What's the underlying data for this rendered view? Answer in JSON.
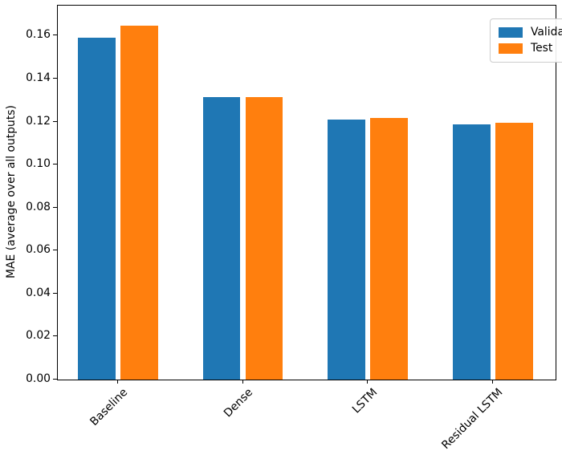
{
  "chart_data": {
    "type": "bar",
    "title": "",
    "categories": [
      "Baseline",
      "Dense",
      "LSTM",
      "Residual LSTM"
    ],
    "series": [
      {
        "name": "Validation",
        "color": "#1f77b4",
        "values": [
          0.1592,
          0.1315,
          0.1208,
          0.1188
        ]
      },
      {
        "name": "Test",
        "color": "#ff7f0e",
        "values": [
          0.1645,
          0.1313,
          0.1218,
          0.1196
        ]
      }
    ],
    "xlabel": "",
    "ylabel": "MAE (average over all outputs)",
    "ylim": [
      0,
      0.174
    ],
    "xlim": [
      -0.48,
      3.5
    ],
    "yticks": [
      "0.00",
      "0.02",
      "0.04",
      "0.06",
      "0.08",
      "0.10",
      "0.12",
      "0.14",
      "0.16"
    ],
    "bar_width": 0.3,
    "bar_offset": 0.17,
    "xtick_rotation": 45,
    "grid": false,
    "legend": {
      "position": "upper-right",
      "entries": [
        "Validation",
        "Test"
      ]
    }
  }
}
